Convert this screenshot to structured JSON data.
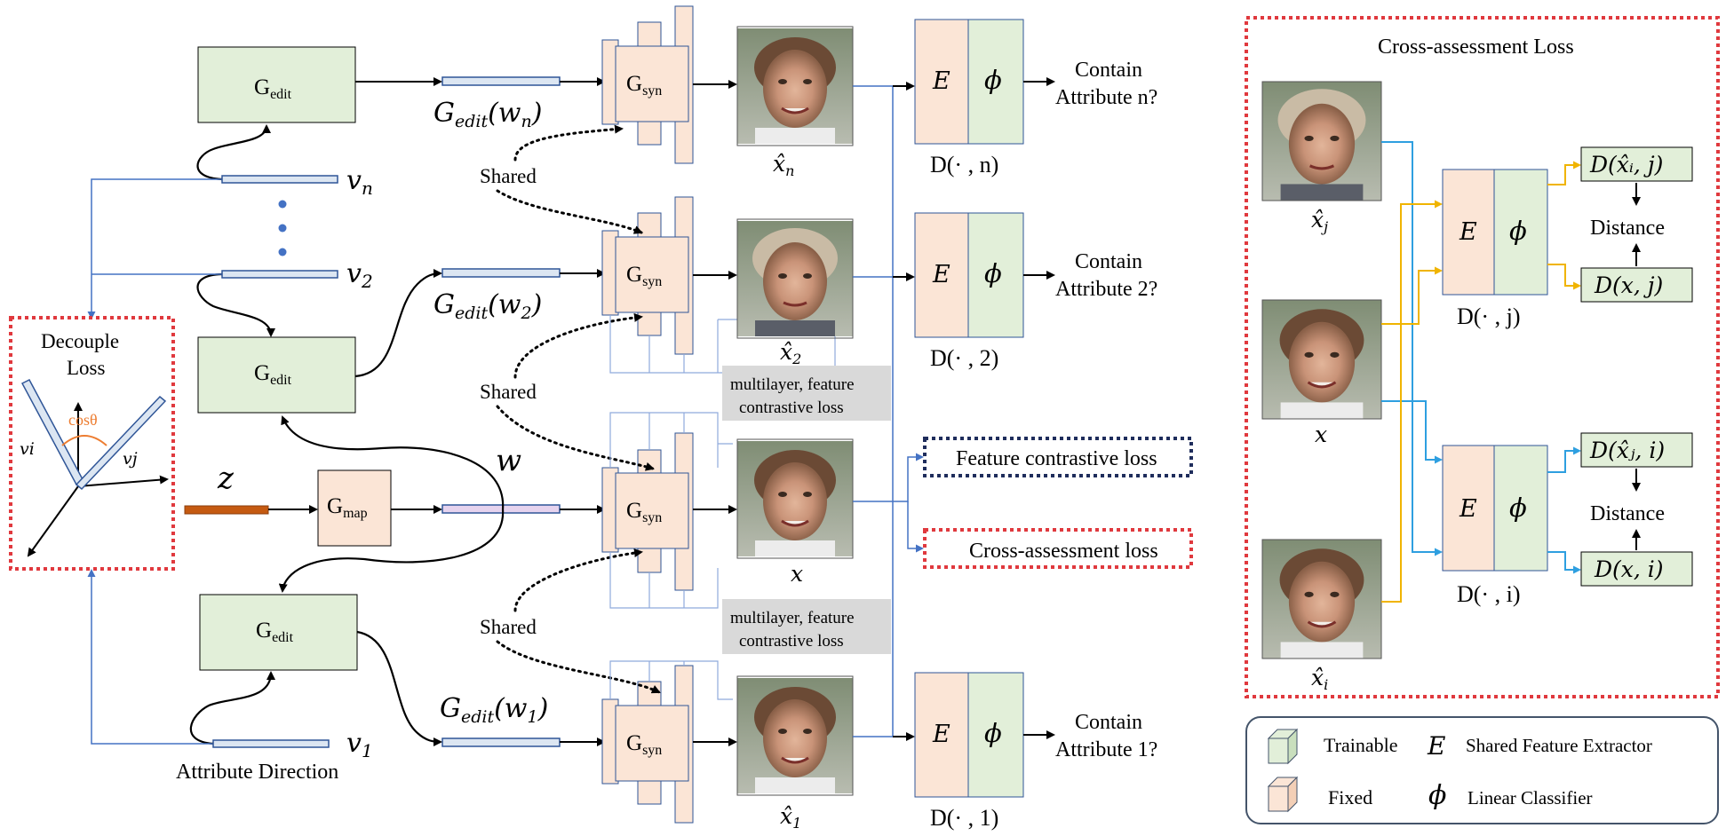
{
  "generators": {
    "gedit_main": "G",
    "gedit_sub": "edit",
    "gsyn_main": "G",
    "gsyn_sub": "syn",
    "gmap_main": "G",
    "gmap_sub": "map"
  },
  "vectors": {
    "vn": "v",
    "vn_sub": "n",
    "v2": "v",
    "v2_sub": "2",
    "v1": "v",
    "v1_sub": "1",
    "z": "z",
    "w": "w"
  },
  "edited_codes": {
    "gn": "G",
    "gn_sub": "edit",
    "gn_arg": "(w",
    "gn_arg_sub": "n",
    "gn_close": ")",
    "g2": "G",
    "g2_sub": "edit",
    "g2_arg": "(w",
    "g2_arg_sub": "2",
    "g2_close": ")",
    "g1": "G",
    "g1_sub": "edit",
    "g1_arg": "(w",
    "g1_arg_sub": "1",
    "g1_close": ")"
  },
  "shared_label": "Shared",
  "attribute_direction": "Attribute Direction",
  "decouple": {
    "title_line1": "Decouple",
    "title_line2": "Loss",
    "cos": "cosθ",
    "vi": "vi",
    "vj": "vj"
  },
  "contrastive_note": {
    "line1": "multilayer, feature",
    "line2": "contrastive loss"
  },
  "images": {
    "xn": "x̂",
    "xn_sub": "n",
    "x2": "x̂",
    "x2_sub": "2",
    "x": "x",
    "x1": "x̂",
    "x1_sub": "1"
  },
  "discriminators": {
    "e": "E",
    "phi": "ϕ",
    "dn": "D(· , n)",
    "d2": "D(· , 2)",
    "d1": "D(· , 1)"
  },
  "outputs": {
    "n_line1": "Contain",
    "n_line2": "Attribute n?",
    "two_line1": "Contain",
    "two_line2": "Attribute 2?",
    "one_line1": "Contain",
    "one_line2": "Attribute 1?"
  },
  "losses": {
    "feature_contrastive": "Feature contrastive loss",
    "cross_assessment": "Cross-assessment loss"
  },
  "cross_panel": {
    "title": "Cross-assessment Loss",
    "xj": "x̂",
    "xj_sub": "j",
    "x": "x",
    "xi": "x̂",
    "xi_sub": "i",
    "dj": "D(· , j)",
    "di": "D(· , i)",
    "d_xhat_i_j": "D(x̂ᵢ, j)",
    "d_x_j": "D(x, j)",
    "d_xhat_j_i": "D(x̂ⱼ, i)",
    "d_x_i": "D(x, i)",
    "distance": "Distance"
  },
  "legend": {
    "trainable": "Trainable",
    "fixed": "Fixed",
    "e_symbol": "E",
    "e_label": "Shared Feature Extractor",
    "phi_symbol": "ϕ",
    "phi_label": "Linear Classifier"
  },
  "colors": {
    "trainable_fill": "#e2efd9",
    "fixed_fill": "#fbe5d6",
    "block_stroke": "#2f5597",
    "red_dash": "#e0393e",
    "navy_dash": "#1f2d5c",
    "blue_line": "#4472c4",
    "cyan_line": "#2e9fe0",
    "gold_line": "#f0b400",
    "z_bar": "#c55a11"
  }
}
